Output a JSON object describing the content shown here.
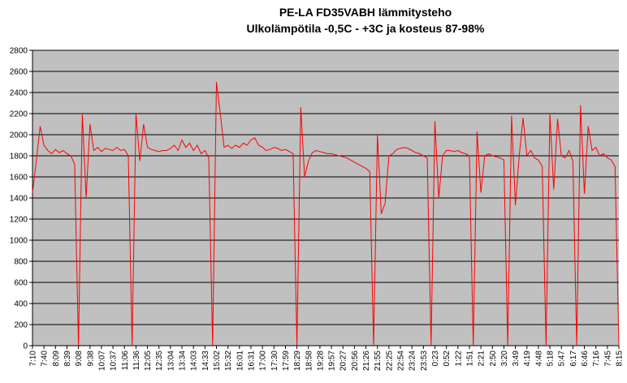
{
  "chart_data": {
    "type": "line",
    "title": "PE-LA FD35VABH lämmitysteho",
    "subtitle": "Ulkolämpötila  -0,5C - +3C ja kosteus 87-98%",
    "categories": [
      "7:10",
      null,
      null,
      "7:40",
      null,
      null,
      "8:09",
      null,
      null,
      "8:39",
      null,
      null,
      "9:08",
      null,
      null,
      "9:38",
      null,
      null,
      "10:07",
      null,
      null,
      "10:37",
      null,
      null,
      "11:06",
      null,
      null,
      "11:36",
      null,
      null,
      "12:05",
      null,
      null,
      "12:35",
      null,
      null,
      "13:04",
      null,
      null,
      "13:34",
      null,
      null,
      "14:03",
      null,
      null,
      "14:33",
      null,
      null,
      "15:02",
      null,
      null,
      "15:32",
      null,
      null,
      "16:01",
      null,
      null,
      "16:31",
      null,
      null,
      "17:00",
      null,
      null,
      "17:30",
      null,
      null,
      "17:59",
      null,
      null,
      "18:29",
      null,
      null,
      "18:58",
      null,
      null,
      "19:28",
      null,
      null,
      "19:57",
      null,
      null,
      "20:27",
      null,
      null,
      "20:56",
      null,
      null,
      "21:26",
      null,
      null,
      "21:55",
      null,
      null,
      "22:25",
      null,
      null,
      "22:54",
      null,
      null,
      "23:24",
      null,
      null,
      "23:53",
      null,
      null,
      "0:23",
      null,
      null,
      "0:52",
      null,
      null,
      "1:22",
      null,
      null,
      "1:51",
      null,
      null,
      "2:21",
      null,
      null,
      "2:50",
      null,
      null,
      "3:20",
      null,
      null,
      "3:49",
      null,
      null,
      "4:19",
      null,
      null,
      "4:48",
      null,
      null,
      "5:18",
      null,
      null,
      "5:47",
      null,
      null,
      "6:17",
      null,
      null,
      "6:46",
      null,
      null,
      "7:16",
      null,
      null,
      "7:45",
      null,
      null,
      "8:15"
    ],
    "values": [
      1450,
      1750,
      2080,
      1900,
      1850,
      1820,
      1860,
      1830,
      1850,
      1820,
      1800,
      1720,
      0,
      2200,
      1400,
      2100,
      1850,
      1880,
      1840,
      1870,
      1860,
      1850,
      1880,
      1850,
      1860,
      1800,
      0,
      2200,
      1750,
      2100,
      1880,
      1860,
      1850,
      1840,
      1850,
      1850,
      1870,
      1900,
      1850,
      1950,
      1880,
      1920,
      1850,
      1900,
      1820,
      1850,
      1780,
      0,
      2500,
      2200,
      1880,
      1900,
      1870,
      1900,
      1880,
      1920,
      1900,
      1950,
      1970,
      1900,
      1880,
      1850,
      1860,
      1880,
      1870,
      1850,
      1860,
      1840,
      1820,
      0,
      2260,
      1600,
      1750,
      1830,
      1850,
      1840,
      1830,
      1820,
      1820,
      1810,
      1800,
      1790,
      1780,
      1760,
      1740,
      1720,
      1700,
      1680,
      1650,
      0,
      2000,
      1250,
      1350,
      1800,
      1820,
      1860,
      1870,
      1880,
      1870,
      1850,
      1830,
      1820,
      1800,
      1780,
      0,
      2130,
      1400,
      1800,
      1850,
      1850,
      1840,
      1850,
      1830,
      1820,
      1800,
      0,
      2030,
      1450,
      1800,
      1820,
      1800,
      1790,
      1780,
      1760,
      0,
      2180,
      1330,
      1800,
      2160,
      1800,
      1850,
      1780,
      1760,
      1700,
      0,
      2200,
      1480,
      2150,
      1800,
      1780,
      1850,
      1750,
      0,
      2280,
      1440,
      2080,
      1850,
      1880,
      1800,
      1820,
      1780,
      1760,
      1700,
      0
    ],
    "color": "#ff0000",
    "ylim": [
      0,
      2800
    ],
    "yticks": [
      0,
      200,
      400,
      600,
      800,
      1000,
      1200,
      1400,
      1600,
      1800,
      2000,
      2200,
      2400,
      2600,
      2800
    ],
    "grid": true
  }
}
